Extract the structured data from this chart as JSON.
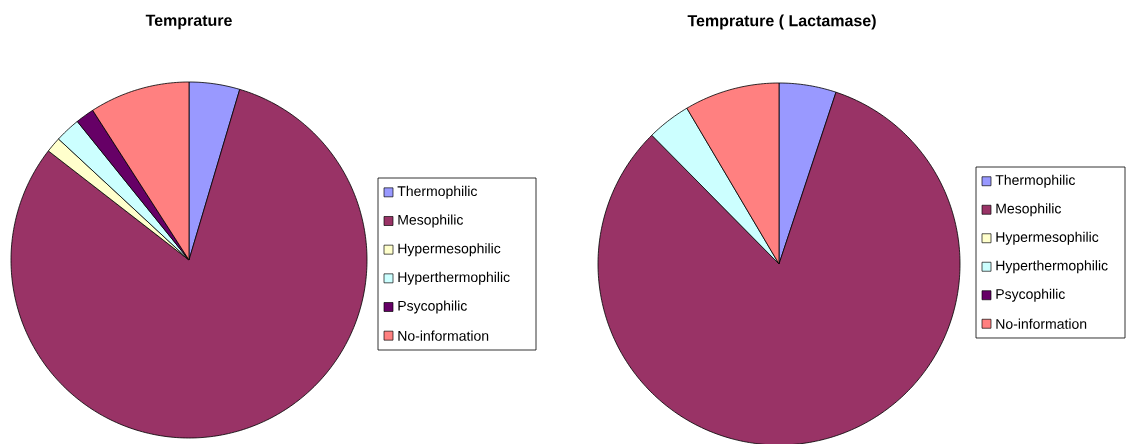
{
  "chart_data": [
    {
      "type": "pie",
      "title": "Temprature",
      "legend": "right",
      "categories": [
        "Thermophilic",
        "Mesophilic",
        "Hypermesophilic",
        "Hyperthermophilic",
        "Psycophilic",
        "No-information"
      ],
      "values": [
        4.6,
        80.9,
        1.4,
        2.3,
        1.7,
        9.1
      ],
      "colors": [
        "#9999ff",
        "#993366",
        "#ffffcc",
        "#ccffff",
        "#660066",
        "#ff8080"
      ]
    },
    {
      "type": "pie",
      "title": "Temprature ( Lactamase)",
      "legend": "right",
      "categories": [
        "Thermophilic",
        "Mesophilic",
        "Hypermesophilic",
        "Hyperthermophilic",
        "Psycophilic",
        "No-information"
      ],
      "values": [
        5.1,
        82.5,
        0,
        3.9,
        0,
        8.5
      ],
      "colors": [
        "#9999ff",
        "#993366",
        "#ffffcc",
        "#ccffff",
        "#660066",
        "#ff8080"
      ]
    }
  ]
}
